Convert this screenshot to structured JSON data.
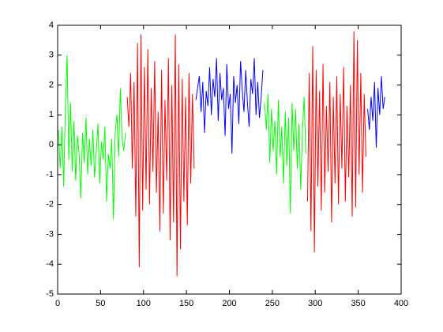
{
  "chart_data": {
    "type": "line",
    "xlim": [
      0,
      400
    ],
    "xticks": [
      0,
      50,
      100,
      150,
      200,
      250,
      300,
      350,
      400
    ],
    "ylim": [
      -5,
      4
    ],
    "yticks": [
      -5,
      -4,
      -3,
      -2,
      -1,
      0,
      1,
      2,
      3,
      4
    ],
    "grid": false,
    "box": true,
    "series": [
      {
        "color": "#00ff00",
        "x": [
          1,
          3,
          5,
          7,
          9,
          11,
          13,
          15,
          17,
          19,
          21,
          23,
          25,
          27,
          29,
          31,
          33,
          35,
          37,
          39,
          41,
          43,
          45,
          47,
          49,
          51,
          53,
          55,
          57,
          59,
          61,
          63,
          65,
          67,
          69,
          71,
          73,
          75,
          77,
          79
        ],
        "values": [
          0.5,
          -0.8,
          0.6,
          -1.4,
          1.2,
          3.0,
          -0.5,
          1.4,
          -0.9,
          0.8,
          -1.2,
          0.3,
          -0.3,
          -1.8,
          0.4,
          -0.6,
          0.9,
          -1.0,
          0.2,
          -0.7,
          0.5,
          -1.1,
          -0.2,
          0.7,
          -1.3,
          0.1,
          -0.5,
          0.6,
          -1.9,
          -0.3,
          -0.8,
          0.2,
          -2.5,
          0.4,
          1.0,
          -0.4,
          1.9,
          0.2,
          -0.2,
          0.4
        ]
      },
      {
        "color": "#ff0000",
        "x": [
          81,
          83,
          85,
          87,
          89,
          91,
          93,
          95,
          97,
          99,
          101,
          103,
          105,
          107,
          109,
          111,
          113,
          115,
          117,
          119,
          121,
          123,
          125,
          127,
          129,
          131,
          133,
          135,
          137,
          139,
          141,
          143,
          145,
          147,
          149,
          151,
          153,
          155,
          157,
          159
        ],
        "values": [
          1.6,
          0.6,
          2.4,
          -0.8,
          2.1,
          -2.4,
          3.4,
          -4.1,
          3.7,
          -2.2,
          2.6,
          -1.5,
          3.2,
          -2.0,
          1.9,
          -0.9,
          2.8,
          -1.6,
          1.1,
          -2.9,
          2.5,
          -2.3,
          1.5,
          -1.2,
          2.9,
          -3.2,
          2.0,
          -2.6,
          3.7,
          -4.4,
          2.7,
          -3.5,
          2.2,
          -1.9,
          1.6,
          -2.7,
          2.4,
          -1.3,
          1.7,
          -0.8
        ]
      },
      {
        "color": "#0000ff",
        "x": [
          161,
          163,
          165,
          167,
          169,
          171,
          173,
          175,
          177,
          179,
          181,
          183,
          185,
          187,
          189,
          191,
          193,
          195,
          197,
          199,
          201,
          203,
          205,
          207,
          209,
          211,
          213,
          215,
          217,
          219,
          221,
          223,
          225,
          227,
          229,
          231,
          233,
          235,
          237,
          239
        ],
        "values": [
          1.5,
          1.9,
          2.3,
          1.1,
          2.1,
          0.4,
          1.8,
          1.3,
          2.6,
          1.0,
          2.2,
          1.6,
          2.9,
          0.8,
          2.4,
          1.5,
          1.9,
          0.3,
          2.7,
          1.2,
          1.7,
          -0.3,
          2.3,
          1.4,
          2.0,
          0.7,
          2.8,
          1.8,
          1.1,
          2.5,
          1.4,
          0.6,
          2.2,
          1.7,
          2.9,
          1.0,
          2.1,
          0.9,
          1.6,
          2.5
        ]
      },
      {
        "color": "#00ff00",
        "x": [
          241,
          243,
          245,
          247,
          249,
          251,
          253,
          255,
          257,
          259,
          261,
          263,
          265,
          267,
          269,
          271,
          273,
          275,
          277,
          279,
          281,
          283,
          285,
          287,
          289
        ],
        "values": [
          1.4,
          0.5,
          1.7,
          -0.6,
          1.2,
          -0.2,
          0.8,
          -1.0,
          1.5,
          -0.4,
          0.6,
          -1.3,
          1.1,
          -0.7,
          0.9,
          -2.3,
          1.4,
          -0.2,
          1.2,
          -0.8,
          0.7,
          -1.5,
          0.4,
          1.6,
          -0.3
        ]
      },
      {
        "color": "#ff0000",
        "x": [
          291,
          293,
          295,
          297,
          299,
          301,
          303,
          305,
          307,
          309,
          311,
          313,
          315,
          317,
          319,
          321,
          323,
          325,
          327,
          329,
          331,
          333,
          335,
          337,
          339,
          341,
          343,
          345,
          347,
          349,
          351,
          353,
          355,
          357,
          359
        ],
        "values": [
          -1.9,
          2.4,
          -2.9,
          3.3,
          -3.6,
          2.5,
          -1.4,
          1.8,
          -2.2,
          2.7,
          -1.6,
          1.3,
          -0.9,
          2.1,
          -2.6,
          1.6,
          -1.3,
          2.3,
          -2.0,
          1.7,
          -0.8,
          2.6,
          -1.9,
          1.3,
          -1.1,
          2.0,
          -2.4,
          3.8,
          -2.1,
          3.5,
          -1.0,
          2.4,
          -1.6,
          1.7,
          -0.4
        ]
      },
      {
        "color": "#0000ff",
        "x": [
          361,
          363,
          365,
          367,
          369,
          371,
          373,
          375,
          377,
          379,
          381
        ],
        "values": [
          1.2,
          0.5,
          1.6,
          0.8,
          2.1,
          -0.1,
          1.9,
          1.0,
          2.3,
          1.2,
          1.6
        ]
      }
    ]
  }
}
